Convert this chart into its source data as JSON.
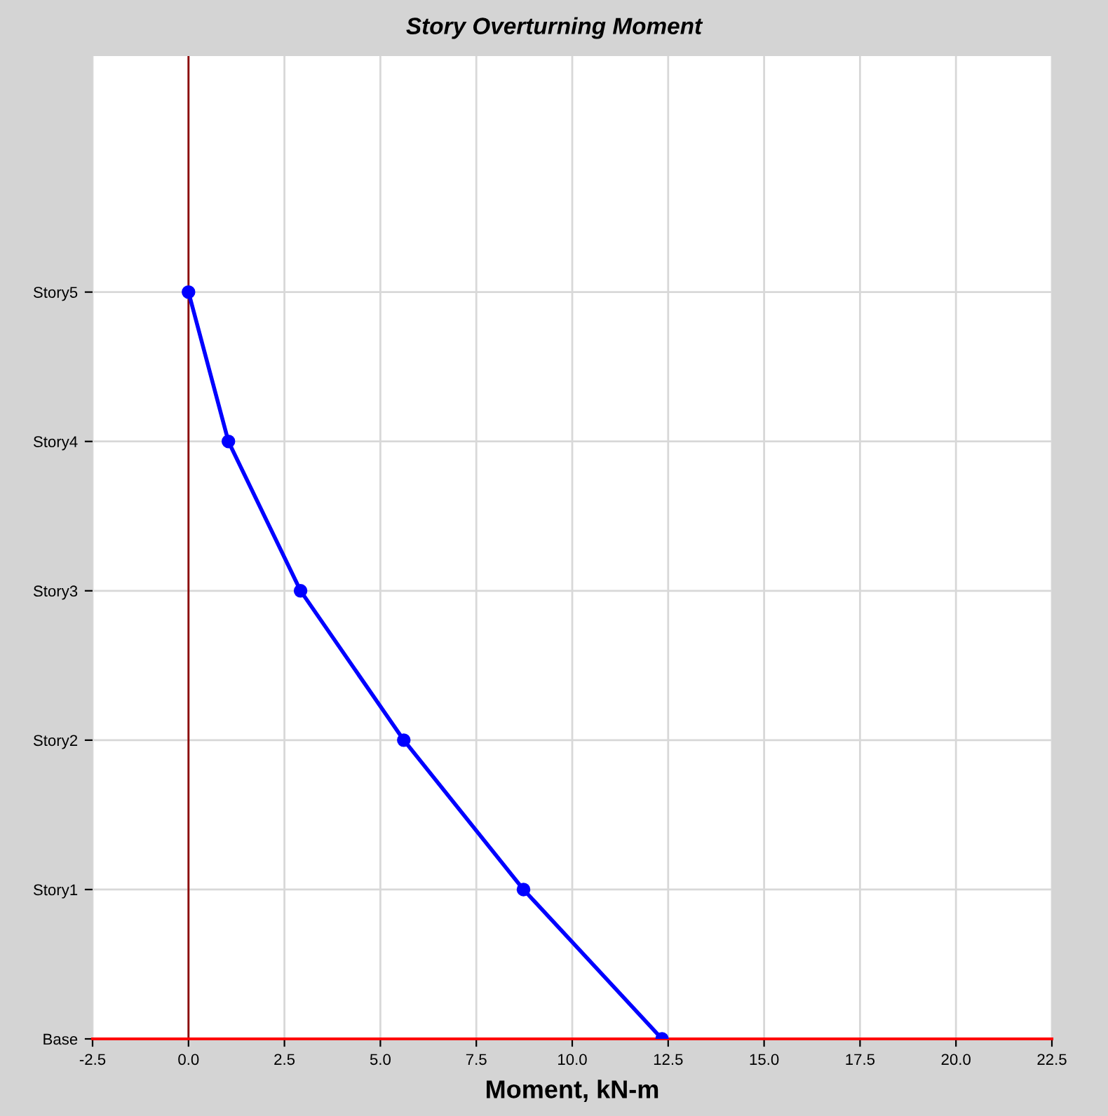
{
  "chart_data": {
    "type": "line",
    "orientation": "horizontal",
    "title": "Story Overturning Moment",
    "xlabel": "Moment, kN-m",
    "categories": [
      "Story5",
      "Story4",
      "Story3",
      "Story2",
      "Story1",
      "Base"
    ],
    "series": [
      {
        "color": "#0000ff",
        "values": [
          0,
          1.04,
          2.92,
          5.61,
          8.73,
          12.34
        ]
      }
    ],
    "xlim": [
      -2.5,
      22.5
    ],
    "xticks": [
      {
        "value": -2.5,
        "label": "-2.5"
      },
      {
        "value": 0,
        "label": "0.0"
      },
      {
        "value": 2.5,
        "label": "2.5"
      },
      {
        "value": 5,
        "label": "5.0"
      },
      {
        "value": 7.5,
        "label": "7.5"
      },
      {
        "value": 10,
        "label": "10.0"
      },
      {
        "value": 12.5,
        "label": "12.5"
      },
      {
        "value": 15,
        "label": "15.0"
      },
      {
        "value": 17.5,
        "label": "17.5"
      },
      {
        "value": 20,
        "label": "20.0"
      },
      {
        "value": 22.5,
        "label": "22.5"
      }
    ],
    "ref_lines": [
      {
        "axis": "x",
        "value": 0,
        "color": "#8b0000"
      }
    ],
    "grid": true,
    "marker": "circle",
    "line_style": "solid"
  }
}
